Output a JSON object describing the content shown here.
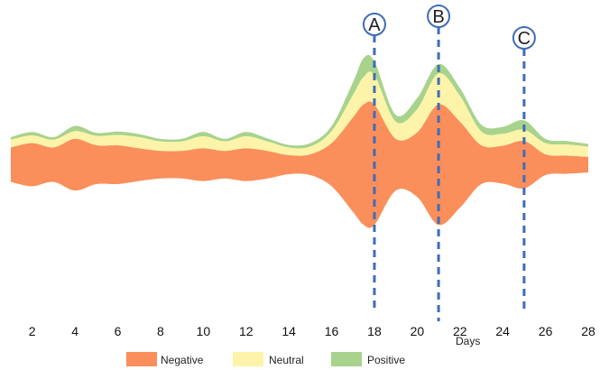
{
  "chart_data": {
    "type": "area",
    "title": "",
    "xlabel": "Days",
    "ylabel": "",
    "x_range": [
      1,
      28
    ],
    "x_ticks": [
      2,
      4,
      6,
      8,
      10,
      12,
      14,
      16,
      18,
      20,
      22,
      24,
      26,
      28
    ],
    "grid": false,
    "legend_position": "bottom",
    "layout": "symmetric-streamgraph",
    "y_range": [
      -16,
      16
    ],
    "x": [
      1,
      2,
      3,
      4,
      5,
      6,
      7,
      8,
      9,
      10,
      11,
      12,
      13,
      14,
      15,
      16,
      17,
      17.5,
      18,
      19,
      20,
      21,
      22,
      23,
      24,
      25,
      26,
      27,
      28
    ],
    "series": [
      {
        "name": "Negative",
        "color": "#fa8f5b",
        "values": [
          4,
          5,
          4,
          6,
          4.5,
          4.5,
          3.8,
          3.2,
          3.2,
          3.8,
          3.2,
          3.8,
          3.2,
          2.2,
          2.4,
          5,
          11,
          14,
          14,
          6,
          7.5,
          14,
          10,
          4.5,
          4.4,
          5.5,
          2.4,
          2.1,
          1.8
        ]
      },
      {
        "name": "Neutral",
        "color": "#fdf4a9",
        "values": [
          0.9,
          0.9,
          0.9,
          0.9,
          1.1,
          1.2,
          1.3,
          1.1,
          1.1,
          1.4,
          1.1,
          1.4,
          1.1,
          0.9,
          0.9,
          1.4,
          2.6,
          3.2,
          3.4,
          2,
          2.7,
          3.6,
          3,
          1.6,
          1.4,
          1.3,
          1.3,
          1.3,
          1.2
        ]
      },
      {
        "name": "Positive",
        "color": "#a8d38c",
        "values": [
          0.3,
          0.4,
          0.3,
          0.6,
          0.35,
          0.4,
          0.35,
          0.3,
          0.3,
          0.5,
          0.3,
          0.5,
          0.35,
          0.3,
          0.4,
          0.6,
          1.5,
          2.2,
          1.6,
          0.8,
          1.3,
          1.1,
          0.9,
          0.8,
          0.8,
          1.1,
          0.5,
          0.4,
          0.3
        ]
      }
    ],
    "annotations": [
      {
        "label": "A",
        "x": 18
      },
      {
        "label": "B",
        "x": 21
      },
      {
        "label": "C",
        "x": 25
      }
    ],
    "annotation_color": "#3f6cb8"
  }
}
